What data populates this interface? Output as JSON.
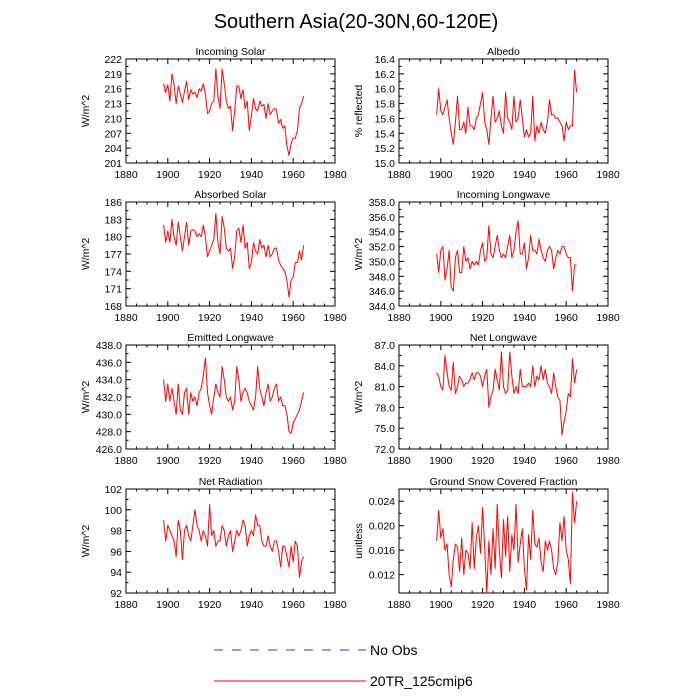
{
  "figure": {
    "title": "Southern Asia(20-30N,60-120E)"
  },
  "legend": [
    {
      "label": "No Obs",
      "color": "#3333cc",
      "style": "dashed"
    },
    {
      "label": "20TR_125cmip6",
      "color": "#ff0000",
      "style": "solid"
    }
  ],
  "chart_data": [
    {
      "type": "line",
      "title": "Incoming Solar",
      "ylabel": "W/m^2",
      "xlim": [
        1880,
        1980
      ],
      "xticks": [
        1880,
        1900,
        1920,
        1940,
        1960,
        1980
      ],
      "ylim": [
        201,
        222
      ],
      "yticks": [
        201,
        204,
        207,
        210,
        213,
        216,
        219,
        222
      ],
      "ydec": 0,
      "x_start": 1898,
      "series": [
        {
          "name": "20TR_125cmip6",
          "color": "#ff0000",
          "values": [
            217.0,
            215.2,
            216.8,
            213.5,
            219.0,
            216.8,
            213.0,
            216.5,
            215.0,
            213.2,
            215.5,
            217.5,
            213.8,
            215.8,
            214.9,
            215.3,
            214.2,
            216.0,
            215.5,
            217.0,
            214.9,
            211.0,
            211.5,
            213.0,
            213.5,
            220.0,
            214.5,
            212.0,
            220.0,
            217.0,
            213.5,
            212.0,
            212.5,
            207.5,
            211.5,
            216.5,
            216.5,
            214.0,
            215.8,
            212.0,
            213.5,
            207.5,
            210.5,
            214.0,
            212.0,
            211.5,
            213.5,
            212.5,
            212.8,
            210.0,
            213.0,
            210.8,
            211.5,
            212.0,
            211.8,
            209.0,
            209.8,
            208.0,
            208.5,
            204.5,
            202.5,
            205.0,
            206.0,
            206.0,
            207.5,
            212.0,
            213.0,
            214.5
          ]
        }
      ]
    },
    {
      "type": "line",
      "title": "Albedo",
      "ylabel": "% reflected",
      "xlim": [
        1880,
        1980
      ],
      "xticks": [
        1880,
        1900,
        1920,
        1940,
        1960,
        1980
      ],
      "ylim": [
        15.0,
        16.4
      ],
      "yticks": [
        15.0,
        15.2,
        15.4,
        15.6,
        15.8,
        16.0,
        16.2,
        16.4
      ],
      "ydec": 1,
      "x_start": 1898,
      "series": [
        {
          "name": "20TR_125cmip6",
          "color": "#ff0000",
          "values": [
            15.65,
            16.0,
            15.7,
            15.65,
            15.75,
            15.85,
            15.6,
            15.4,
            15.25,
            15.55,
            15.9,
            15.45,
            15.45,
            15.55,
            15.4,
            15.75,
            15.5,
            15.5,
            15.45,
            15.6,
            15.65,
            15.8,
            15.95,
            15.55,
            15.45,
            15.25,
            15.6,
            15.9,
            15.55,
            15.6,
            15.7,
            15.5,
            15.4,
            15.95,
            15.6,
            15.55,
            15.45,
            15.9,
            15.55,
            15.6,
            15.85,
            15.6,
            15.35,
            15.45,
            15.35,
            15.4,
            15.9,
            15.3,
            15.5,
            15.4,
            15.55,
            15.45,
            15.4,
            15.55,
            15.85,
            15.65,
            15.65,
            15.6,
            15.6,
            15.55,
            15.5,
            15.3,
            15.55,
            15.45,
            15.5,
            15.5,
            16.25,
            15.95
          ]
        }
      ]
    },
    {
      "type": "line",
      "title": "Absorbed Solar",
      "ylabel": "W/m^2",
      "xlim": [
        1880,
        1980
      ],
      "xticks": [
        1880,
        1900,
        1920,
        1940,
        1960,
        1980
      ],
      "ylim": [
        168,
        186
      ],
      "yticks": [
        168,
        171,
        174,
        177,
        180,
        183,
        186
      ],
      "ydec": 0,
      "x_start": 1898,
      "series": [
        {
          "name": "20TR_125cmip6",
          "color": "#ff0000",
          "values": [
            182.0,
            179.0,
            181.0,
            179.0,
            183.0,
            180.0,
            178.5,
            182.5,
            180.0,
            177.5,
            180.0,
            182.5,
            178.5,
            181.0,
            181.2,
            181.0,
            180.0,
            180.5,
            180.0,
            182.0,
            180.0,
            176.5,
            177.5,
            178.5,
            179.5,
            184.0,
            179.0,
            177.0,
            183.5,
            181.5,
            178.0,
            177.5,
            178.0,
            174.5,
            176.5,
            181.0,
            181.5,
            179.0,
            182.0,
            178.0,
            179.0,
            174.5,
            175.5,
            179.0,
            177.5,
            177.0,
            179.5,
            178.0,
            178.5,
            176.5,
            178.5,
            176.5,
            177.0,
            178.0,
            178.0,
            176.0,
            175.0,
            174.5,
            174.0,
            172.5,
            169.5,
            172.5,
            173.0,
            175.5,
            175.5,
            177.5,
            176.0,
            178.5
          ]
        }
      ]
    },
    {
      "type": "line",
      "title": "Incoming Longwave",
      "ylabel": "W/m^2",
      "xlim": [
        1880,
        1980
      ],
      "xticks": [
        1880,
        1900,
        1920,
        1940,
        1960,
        1980
      ],
      "ylim": [
        344.0,
        358.0
      ],
      "yticks": [
        344.0,
        346.0,
        348.0,
        350.0,
        352.0,
        354.0,
        356.0,
        358.0
      ],
      "ydec": 1,
      "x_start": 1898,
      "series": [
        {
          "name": "20TR_125cmip6",
          "color": "#ff0000",
          "values": [
            351.0,
            348.5,
            351.5,
            352.0,
            347.5,
            349.0,
            351.5,
            346.5,
            346.0,
            350.5,
            351.5,
            348.5,
            348.5,
            352.0,
            350.0,
            350.5,
            349.0,
            350.0,
            349.5,
            350.0,
            349.5,
            351.5,
            352.5,
            350.0,
            350.5,
            354.8,
            351.0,
            350.5,
            352.0,
            353.5,
            351.5,
            350.5,
            351.0,
            350.5,
            352.0,
            353.5,
            350.5,
            351.5,
            354.0,
            355.5,
            351.0,
            351.0,
            352.5,
            349.0,
            350.5,
            353.5,
            351.5,
            351.5,
            351.0,
            353.0,
            351.5,
            350.5,
            350.0,
            351.5,
            352.0,
            351.5,
            349.0,
            350.5,
            351.5,
            351.0,
            352.0,
            352.0,
            351.0,
            350.5,
            350.5,
            346.0,
            349.5,
            349.5
          ]
        }
      ]
    },
    {
      "type": "line",
      "title": "Emitted Longwave",
      "ylabel": "W/m^2",
      "xlim": [
        1880,
        1980
      ],
      "xticks": [
        1880,
        1900,
        1920,
        1940,
        1960,
        1980
      ],
      "ylim": [
        426.0,
        438.0
      ],
      "yticks": [
        426.0,
        428.0,
        430.0,
        432.0,
        434.0,
        436.0,
        438.0
      ],
      "ydec": 1,
      "x_start": 1898,
      "series": [
        {
          "name": "20TR_125cmip6",
          "color": "#ff0000",
          "values": [
            434.0,
            431.5,
            433.5,
            431.5,
            433.0,
            431.5,
            430.0,
            433.5,
            430.5,
            430.0,
            432.5,
            433.0,
            430.0,
            432.5,
            431.5,
            432.0,
            431.0,
            432.5,
            433.0,
            434.5,
            436.5,
            432.5,
            431.0,
            430.0,
            432.0,
            433.5,
            432.5,
            432.0,
            435.5,
            434.0,
            432.0,
            431.5,
            432.0,
            430.5,
            431.5,
            435.5,
            434.0,
            431.5,
            432.5,
            433.0,
            432.5,
            431.5,
            431.0,
            430.5,
            432.0,
            435.5,
            433.0,
            432.0,
            431.0,
            432.5,
            433.5,
            431.5,
            432.0,
            433.0,
            433.5,
            431.5,
            432.0,
            431.0,
            431.0,
            430.0,
            428.0,
            427.8,
            429.0,
            429.5,
            430.0,
            430.5,
            431.5,
            432.5
          ]
        }
      ]
    },
    {
      "type": "line",
      "title": "Net Longwave",
      "ylabel": "W/m^2",
      "xlim": [
        1880,
        1980
      ],
      "xticks": [
        1880,
        1900,
        1920,
        1940,
        1960,
        1980
      ],
      "ylim": [
        72.0,
        87.0
      ],
      "yticks": [
        72.0,
        75.0,
        78.0,
        81.0,
        84.0,
        87.0
      ],
      "ydec": 1,
      "x_start": 1898,
      "series": [
        {
          "name": "20TR_125cmip6",
          "color": "#ff0000",
          "values": [
            83.0,
            82.5,
            81.0,
            80.5,
            85.5,
            83.0,
            81.0,
            80.5,
            84.5,
            80.0,
            81.0,
            82.5,
            82.0,
            81.0,
            81.5,
            81.5,
            82.0,
            83.0,
            82.0,
            83.0,
            83.0,
            82.5,
            81.0,
            82.5,
            83.5,
            78.0,
            79.5,
            80.5,
            83.5,
            82.0,
            80.5,
            86.0,
            81.0,
            80.0,
            80.5,
            86.0,
            82.5,
            80.0,
            81.0,
            80.0,
            83.5,
            81.0,
            81.0,
            81.0,
            81.5,
            81.0,
            84.0,
            81.0,
            82.5,
            82.0,
            84.0,
            82.0,
            83.5,
            81.5,
            81.0,
            80.0,
            83.0,
            81.0,
            79.5,
            79.0,
            74.0,
            76.0,
            77.5,
            80.0,
            79.5,
            85.0,
            81.5,
            83.5
          ]
        }
      ]
    },
    {
      "type": "line",
      "title": "Net Radiation",
      "ylabel": "W/m^2",
      "xlim": [
        1880,
        1980
      ],
      "xticks": [
        1880,
        1900,
        1920,
        1940,
        1960,
        1980
      ],
      "ylim": [
        92,
        102
      ],
      "yticks": [
        92,
        94,
        96,
        98,
        100,
        102
      ],
      "ydec": 0,
      "x_start": 1898,
      "series": [
        {
          "name": "20TR_125cmip6",
          "color": "#ff0000",
          "values": [
            99.0,
            97.0,
            98.5,
            98.0,
            97.5,
            97.0,
            95.5,
            99.0,
            98.0,
            95.2,
            98.0,
            98.5,
            97.5,
            97.0,
            98.5,
            100.0,
            98.5,
            98.0,
            97.0,
            98.0,
            97.5,
            96.5,
            100.5,
            97.5,
            98.0,
            96.5,
            97.0,
            97.0,
            98.5,
            98.0,
            96.5,
            97.5,
            98.0,
            96.0,
            97.0,
            98.0,
            97.5,
            98.0,
            99.0,
            98.5,
            96.5,
            97.5,
            98.0,
            97.5,
            99.5,
            98.5,
            98.5,
            97.0,
            96.5,
            96.5,
            97.5,
            96.5,
            96.0,
            97.0,
            97.0,
            96.0,
            94.5,
            96.5,
            96.5,
            95.5,
            94.5,
            96.5,
            95.0,
            97.0,
            96.5,
            93.5,
            95.0,
            95.5
          ]
        }
      ]
    },
    {
      "type": "line",
      "title": "Ground Snow Covered Fraction",
      "ylabel": "unitless",
      "xlim": [
        1880,
        1980
      ],
      "xticks": [
        1880,
        1900,
        1920,
        1940,
        1960,
        1980
      ],
      "ylim": [
        0.009,
        0.026
      ],
      "yticks": [
        0.012,
        0.016,
        0.02,
        0.024
      ],
      "ydec": 3,
      "x_start": 1898,
      "series": [
        {
          "name": "20TR_125cmip6",
          "color": "#ff0000",
          "values": [
            0.0175,
            0.0225,
            0.018,
            0.0195,
            0.016,
            0.017,
            0.012,
            0.01,
            0.0145,
            0.017,
            0.0165,
            0.0125,
            0.018,
            0.012,
            0.016,
            0.0155,
            0.013,
            0.0205,
            0.013,
            0.018,
            0.02,
            0.0155,
            0.023,
            0.0165,
            0.009,
            0.0175,
            0.012,
            0.0195,
            0.013,
            0.0235,
            0.016,
            0.0115,
            0.021,
            0.015,
            0.0215,
            0.0125,
            0.0185,
            0.016,
            0.0235,
            0.014,
            0.017,
            0.0195,
            0.013,
            0.0095,
            0.0185,
            0.0145,
            0.0225,
            0.017,
            0.0165,
            0.018,
            0.014,
            0.0125,
            0.0175,
            0.016,
            0.0175,
            0.016,
            0.013,
            0.012,
            0.014,
            0.0205,
            0.0175,
            0.0215,
            0.016,
            0.0145,
            0.0105,
            0.0255,
            0.0205,
            0.024
          ]
        }
      ]
    }
  ]
}
